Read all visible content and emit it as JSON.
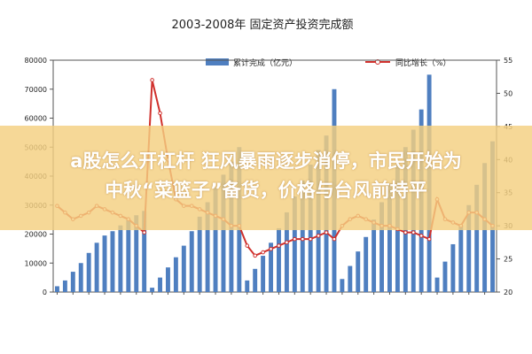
{
  "chart_data": {
    "type": "bar+line",
    "title": "2003-2008年 固定资产投资完成额",
    "series": [
      {
        "name": "累计完成（亿元）",
        "kind": "bar",
        "axis": "left",
        "color": "#4f7fc0",
        "values": [
          2000,
          4000,
          7000,
          10000,
          13500,
          17000,
          19500,
          21000,
          23000,
          25000,
          26500,
          28000,
          1500,
          5000,
          8500,
          12000,
          16000,
          21000,
          26000,
          31000,
          36000,
          40500,
          45000,
          50000,
          4000,
          8000,
          12500,
          17000,
          22000,
          27500,
          33000,
          38500,
          44000,
          49000,
          54000,
          70000,
          4500,
          9000,
          14000,
          19000,
          25000,
          31000,
          37500,
          44000,
          50000,
          56000,
          63000,
          75000,
          5000,
          10500,
          16500,
          23000,
          30000,
          37000,
          44500,
          52000
        ]
      },
      {
        "name": "同比增长（%）",
        "kind": "line",
        "axis": "right",
        "color": "#d0312d",
        "values": [
          33,
          32,
          31,
          31.5,
          32,
          33,
          32.5,
          32,
          31.5,
          31,
          30,
          29,
          52,
          47,
          40,
          34,
          33,
          33,
          32.5,
          32,
          31.5,
          31,
          30,
          30,
          27,
          25.5,
          26,
          26.5,
          27,
          27.5,
          28,
          28,
          28,
          28.5,
          29,
          28,
          30,
          31,
          31.5,
          31,
          30.5,
          30,
          30,
          29.5,
          29,
          29,
          28.5,
          28,
          34,
          31,
          30.5,
          30,
          32,
          32,
          31,
          30
        ]
      }
    ],
    "y_left": {
      "min": 0,
      "max": 80000,
      "ticks": [
        "0",
        "10000",
        "20000",
        "30000",
        "40000",
        "50000",
        "60000",
        "70000",
        "80000"
      ]
    },
    "y_right": {
      "min": 20,
      "max": 55,
      "ticks": [
        "20",
        "25",
        "30",
        "35",
        "40",
        "45",
        "50",
        "55"
      ]
    },
    "grid": false,
    "legend_position": "top"
  },
  "overlay": {
    "line1": "a股怎么开杠杆 狂风暴雨逐步消停，市民开始为",
    "line2": "中秋“菜篮子”备货，价格与台风前持平"
  }
}
